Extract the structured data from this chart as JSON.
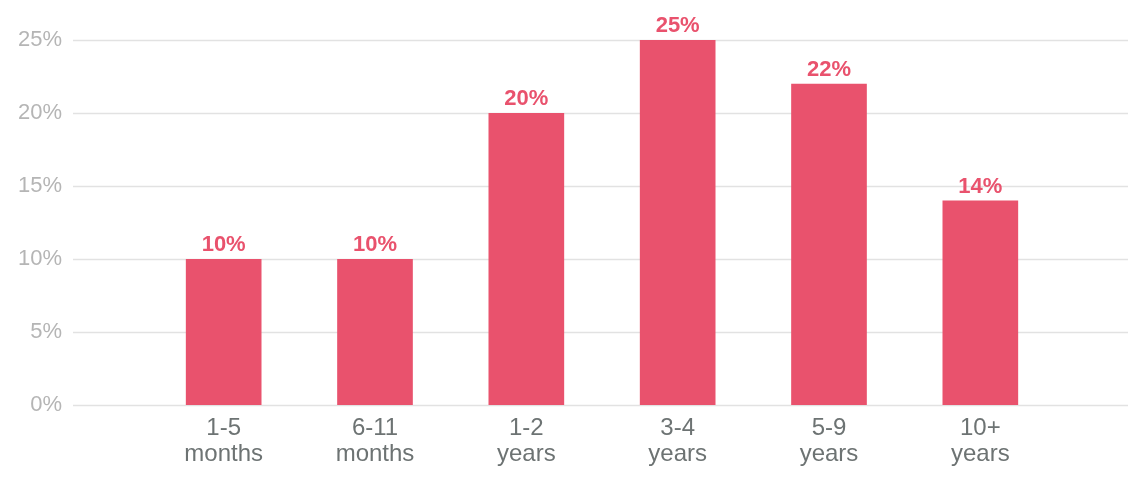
{
  "chart_data": {
    "type": "bar",
    "categories": [
      "1-5 months",
      "6-11 months",
      "1-2 years",
      "3-4 years",
      "5-9 years",
      "10+ years"
    ],
    "values": [
      10,
      10,
      20,
      25,
      22,
      14
    ],
    "color": "#e9526d",
    "value_labels": [
      "10%",
      "10%",
      "20%",
      "25%",
      "22%",
      "14%"
    ],
    "ylim": [
      0,
      25
    ],
    "yticks": [
      {
        "value": 0,
        "label": "0%"
      },
      {
        "value": 5,
        "label": "5%"
      },
      {
        "value": 10,
        "label": "10%"
      },
      {
        "value": 15,
        "label": "15%"
      },
      {
        "value": 20,
        "label": "20%"
      },
      {
        "value": 25,
        "label": "25%"
      }
    ],
    "grid": "y"
  }
}
